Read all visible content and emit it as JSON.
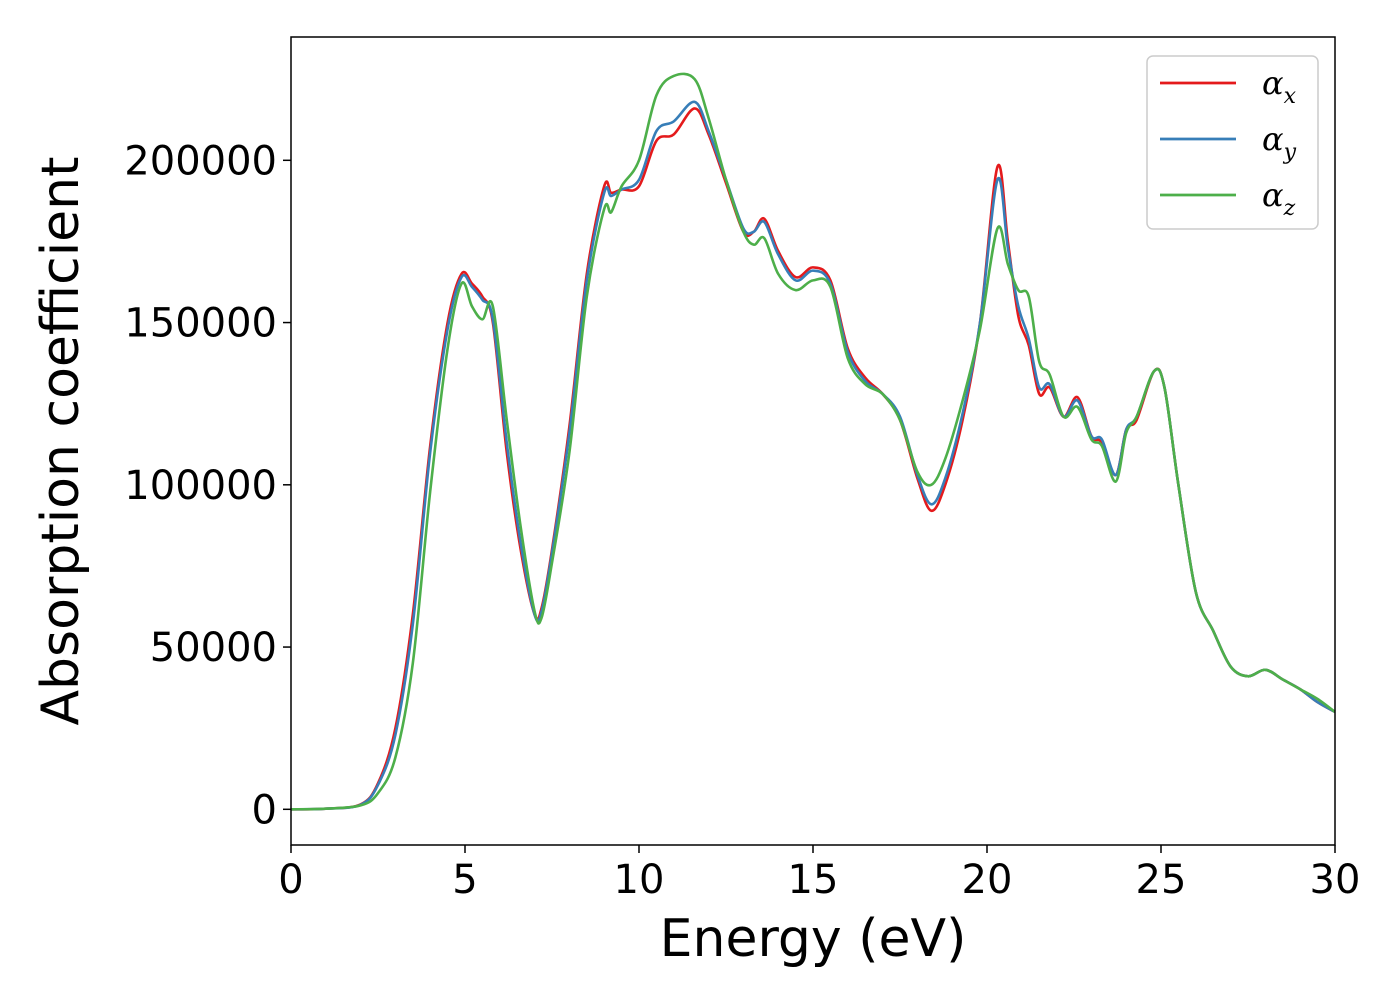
{
  "chart_data": {
    "type": "line",
    "title": "",
    "xlabel": "Energy (eV)",
    "ylabel": "Absorption coefficient",
    "xlim": [
      0,
      30
    ],
    "ylim": [
      -11000,
      238000
    ],
    "xticks": [
      0,
      5,
      10,
      15,
      20,
      25,
      30
    ],
    "xtick_labels": [
      "0",
      "5",
      "10",
      "15",
      "20",
      "25",
      "30"
    ],
    "yticks": [
      0,
      50000,
      100000,
      150000,
      200000
    ],
    "ytick_labels": [
      "0",
      "50000",
      "100000",
      "150000",
      "200000"
    ],
    "grid": false,
    "legend_position": "top-right",
    "series": [
      {
        "name": "α",
        "subscript": "x",
        "color": "#e41a1c",
        "x": [
          0,
          1,
          2,
          2.5,
          3,
          3.5,
          4,
          4.5,
          4.9,
          5.2,
          5.5,
          5.8,
          6.2,
          6.6,
          7.0,
          7.2,
          7.5,
          8.0,
          8.5,
          9.0,
          9.2,
          9.5,
          10.0,
          10.5,
          11.0,
          11.6,
          12.0,
          12.5,
          13.0,
          13.3,
          13.6,
          14.0,
          14.5,
          15.0,
          15.5,
          16.0,
          16.5,
          17.0,
          17.5,
          18.0,
          18.4,
          18.8,
          19.3,
          19.8,
          20.3,
          20.6,
          20.9,
          21.2,
          21.5,
          21.8,
          22.2,
          22.6,
          23.0,
          23.3,
          23.7,
          24.0,
          24.3,
          24.8,
          25.1,
          25.5,
          26.0,
          26.5,
          27.0,
          27.5,
          28.0,
          28.5,
          29.0,
          29.5,
          30.0
        ],
        "values": [
          0,
          200,
          1500,
          8000,
          25000,
          60000,
          112000,
          150000,
          165000,
          162000,
          158000,
          150000,
          110000,
          80000,
          60000,
          62000,
          80000,
          118000,
          165000,
          192000,
          190000,
          191000,
          192000,
          206000,
          208000,
          216000,
          208000,
          193000,
          178000,
          178000,
          182000,
          172000,
          164000,
          167000,
          163000,
          142000,
          133000,
          128000,
          120000,
          102000,
          92000,
          100000,
          120000,
          150000,
          198000,
          175000,
          152000,
          143000,
          128000,
          130000,
          121000,
          127000,
          115000,
          113000,
          103000,
          117000,
          120000,
          135000,
          130000,
          100000,
          67000,
          55000,
          44000,
          41000,
          43000,
          40000,
          37000,
          33000,
          30000
        ]
      },
      {
        "name": "α",
        "subscript": "y",
        "color": "#377eb8",
        "x": [
          0,
          1,
          2,
          2.5,
          3,
          3.5,
          4,
          4.5,
          4.9,
          5.2,
          5.5,
          5.8,
          6.2,
          6.6,
          7.0,
          7.2,
          7.5,
          8.0,
          8.5,
          9.0,
          9.2,
          9.5,
          10.0,
          10.5,
          11.0,
          11.6,
          12.0,
          12.5,
          13.0,
          13.3,
          13.6,
          14.0,
          14.5,
          15.0,
          15.5,
          16.0,
          16.5,
          17.0,
          17.5,
          18.0,
          18.4,
          18.8,
          19.3,
          19.8,
          20.3,
          20.6,
          20.9,
          21.2,
          21.5,
          21.8,
          22.2,
          22.6,
          23.0,
          23.3,
          23.7,
          24.0,
          24.3,
          24.8,
          25.1,
          25.5,
          26.0,
          26.5,
          27.0,
          27.5,
          28.0,
          28.5,
          29.0,
          29.5,
          30.0
        ],
        "values": [
          0,
          200,
          1400,
          7500,
          23000,
          57000,
          110000,
          148000,
          164000,
          161000,
          157000,
          151000,
          113000,
          82000,
          60000,
          61000,
          79000,
          116000,
          163000,
          190000,
          189000,
          191000,
          194000,
          209000,
          212000,
          218000,
          209000,
          194000,
          179000,
          178000,
          181000,
          171000,
          163000,
          166000,
          162000,
          141000,
          132000,
          128000,
          121000,
          103000,
          94000,
          102000,
          122000,
          150000,
          194000,
          173000,
          155000,
          145000,
          130000,
          131000,
          121000,
          126000,
          115000,
          114000,
          103000,
          117000,
          121000,
          135000,
          130000,
          100000,
          67000,
          55000,
          44000,
          41000,
          43000,
          40000,
          37000,
          33000,
          30000
        ]
      },
      {
        "name": "α",
        "subscript": "z",
        "color": "#4daf4a",
        "x": [
          0,
          1,
          2,
          2.5,
          3,
          3.5,
          4,
          4.5,
          4.9,
          5.2,
          5.5,
          5.8,
          6.2,
          6.6,
          7.0,
          7.2,
          7.5,
          8.0,
          8.5,
          9.0,
          9.2,
          9.5,
          10.0,
          10.5,
          11.0,
          11.6,
          12.0,
          12.5,
          13.0,
          13.3,
          13.6,
          14.0,
          14.5,
          15.0,
          15.5,
          16.0,
          16.5,
          17.0,
          17.5,
          18.0,
          18.4,
          18.8,
          19.3,
          19.8,
          20.3,
          20.6,
          20.9,
          21.2,
          21.5,
          21.8,
          22.2,
          22.6,
          23.0,
          23.3,
          23.7,
          24.0,
          24.3,
          24.8,
          25.1,
          25.5,
          26.0,
          26.5,
          27.0,
          27.5,
          28.0,
          28.5,
          29.0,
          29.5,
          30.0
        ],
        "values": [
          0,
          200,
          1200,
          5000,
          16000,
          45000,
          98000,
          142000,
          162000,
          155000,
          151000,
          155000,
          120000,
          87000,
          61000,
          59000,
          76000,
          110000,
          158000,
          185000,
          184000,
          192000,
          200000,
          220000,
          226000,
          225000,
          213000,
          194000,
          178000,
          174000,
          176000,
          165000,
          160000,
          163000,
          161000,
          139000,
          131000,
          128000,
          120000,
          104000,
          100000,
          108000,
          126000,
          148000,
          179000,
          168000,
          160000,
          158000,
          138000,
          134000,
          121000,
          124000,
          114000,
          112000,
          101000,
          116000,
          121000,
          135000,
          130000,
          100000,
          67000,
          55000,
          44000,
          41000,
          43000,
          40000,
          37000,
          34000,
          30000
        ]
      }
    ]
  }
}
